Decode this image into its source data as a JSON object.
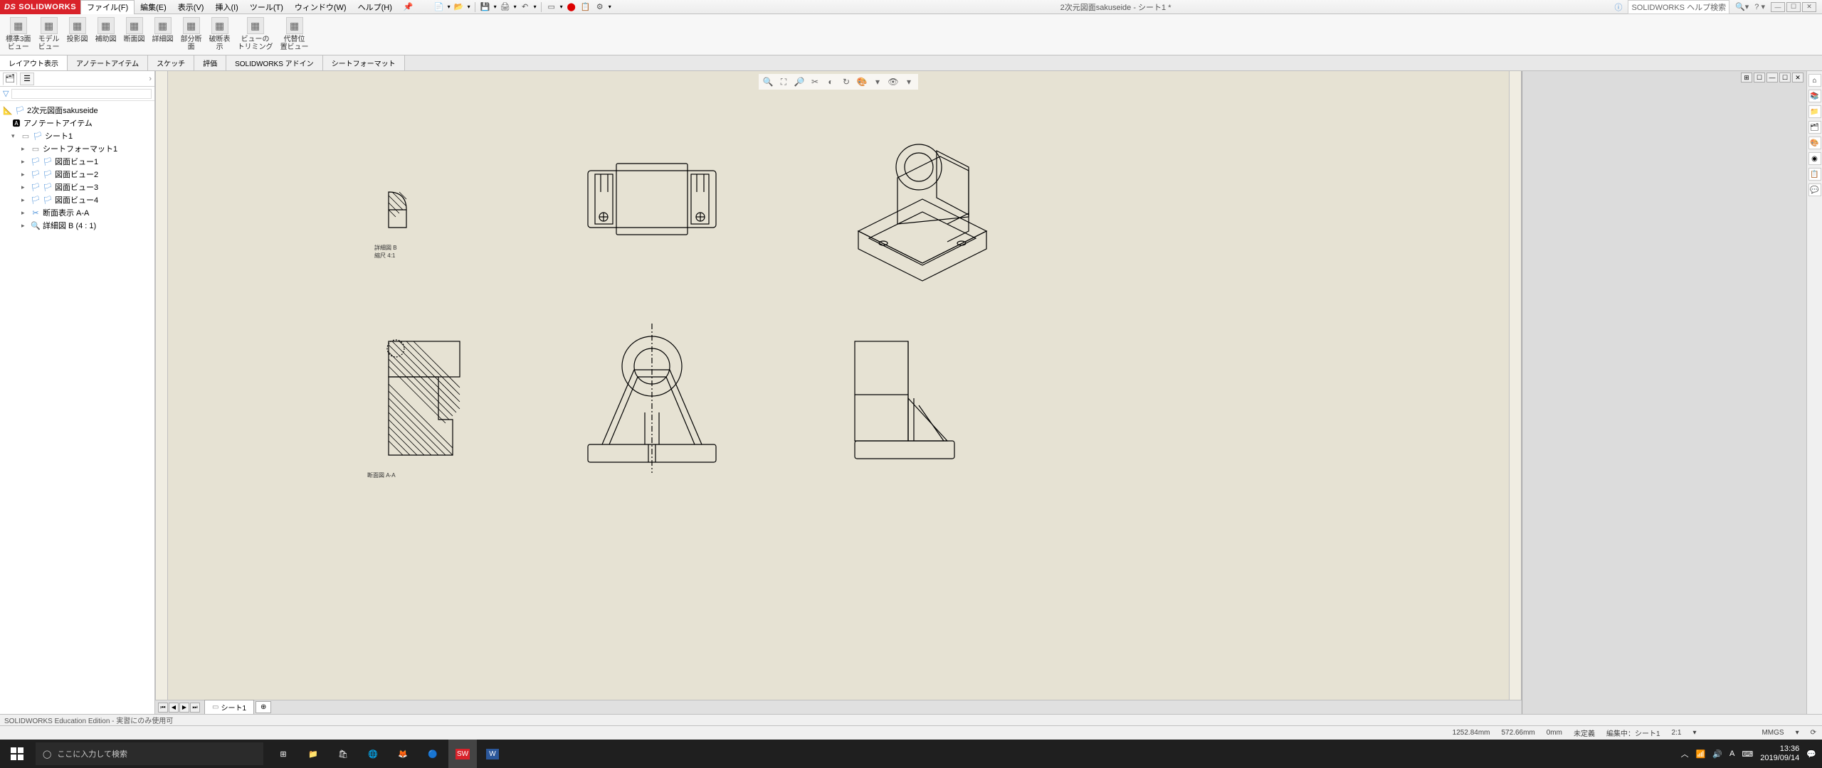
{
  "app": {
    "logo_text": "SOLIDWORKS",
    "title": "2次元図面sakuseide  - シート1 *",
    "help_search": "SOLIDWORKS ヘルプ検索"
  },
  "menu": [
    "ファイル(F)",
    "編集(E)",
    "表示(V)",
    "挿入(I)",
    "ツール(T)",
    "ウィンドウ(W)",
    "ヘルプ(H)"
  ],
  "ribbon_groups": [
    {
      "label": "標準3面\nビュー"
    },
    {
      "label": "モデル\nビュー"
    },
    {
      "label": "投影図"
    },
    {
      "label": "補助図"
    },
    {
      "label": "断面図"
    },
    {
      "label": "詳細図"
    },
    {
      "label": "部分断\n面"
    },
    {
      "label": "破断表\n示"
    },
    {
      "label": "ビューの\nトリミング"
    },
    {
      "label": "代替位\n置ビュー"
    }
  ],
  "ribbon_tabs": [
    "レイアウト表示",
    "アノテートアイテム",
    "スケッチ",
    "評価",
    "SOLIDWORKS アドイン",
    "シートフォーマット"
  ],
  "tree": {
    "root": "2次元図面sakuseide",
    "annotations": "アノテートアイテム",
    "sheet": "シート1",
    "items": [
      "シートフォーマット1",
      "図面ビュー1",
      "図面ビュー2",
      "図面ビュー3",
      "図面ビュー4",
      "断面表示 A-A",
      "詳細図 B (4 : 1)"
    ]
  },
  "detail_label": "詳細図 B\n縮尺 4:1",
  "section_label": "断面図 A-A",
  "sheet_tab": "シート1",
  "edu_text": "SOLIDWORKS Education Edition - 実習にのみ使用可",
  "status": {
    "x": "1252.84mm",
    "y": "572.66mm",
    "z": "0mm",
    "state": "未定義",
    "editing": "編集中：シート1",
    "scale": "2:1",
    "units": "MMGS"
  },
  "taskbar": {
    "search_placeholder": "ここに入力して検索",
    "time": "13:36",
    "date": "2019/09/14"
  }
}
